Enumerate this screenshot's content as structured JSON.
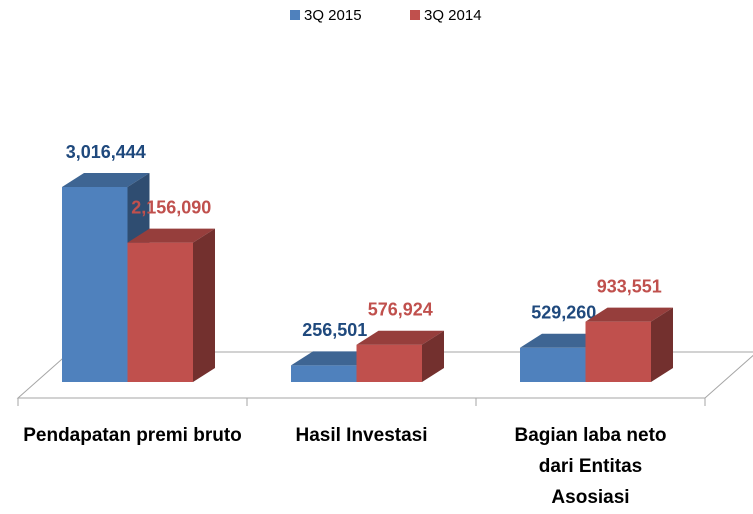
{
  "chart_data": {
    "type": "bar3d",
    "categories": [
      "Pendapatan premi bruto",
      "Hasil Investasi",
      "Bagian laba neto dari Entitas Asosiasi"
    ],
    "series": [
      {
        "name": "3Q 2015",
        "color": "#4f81bd",
        "label_color": "#1f497d",
        "values": [
          3016444,
          256501,
          529260
        ],
        "value_labels": [
          "3,016,444",
          "256,501",
          "529,260"
        ]
      },
      {
        "name": "3Q 2014",
        "color": "#c0504d",
        "label_color": "#c0504d",
        "values": [
          2156090,
          576924,
          933551
        ],
        "value_labels": [
          "2,156,090",
          "576,924",
          "933,551"
        ]
      }
    ],
    "legend": "top"
  }
}
